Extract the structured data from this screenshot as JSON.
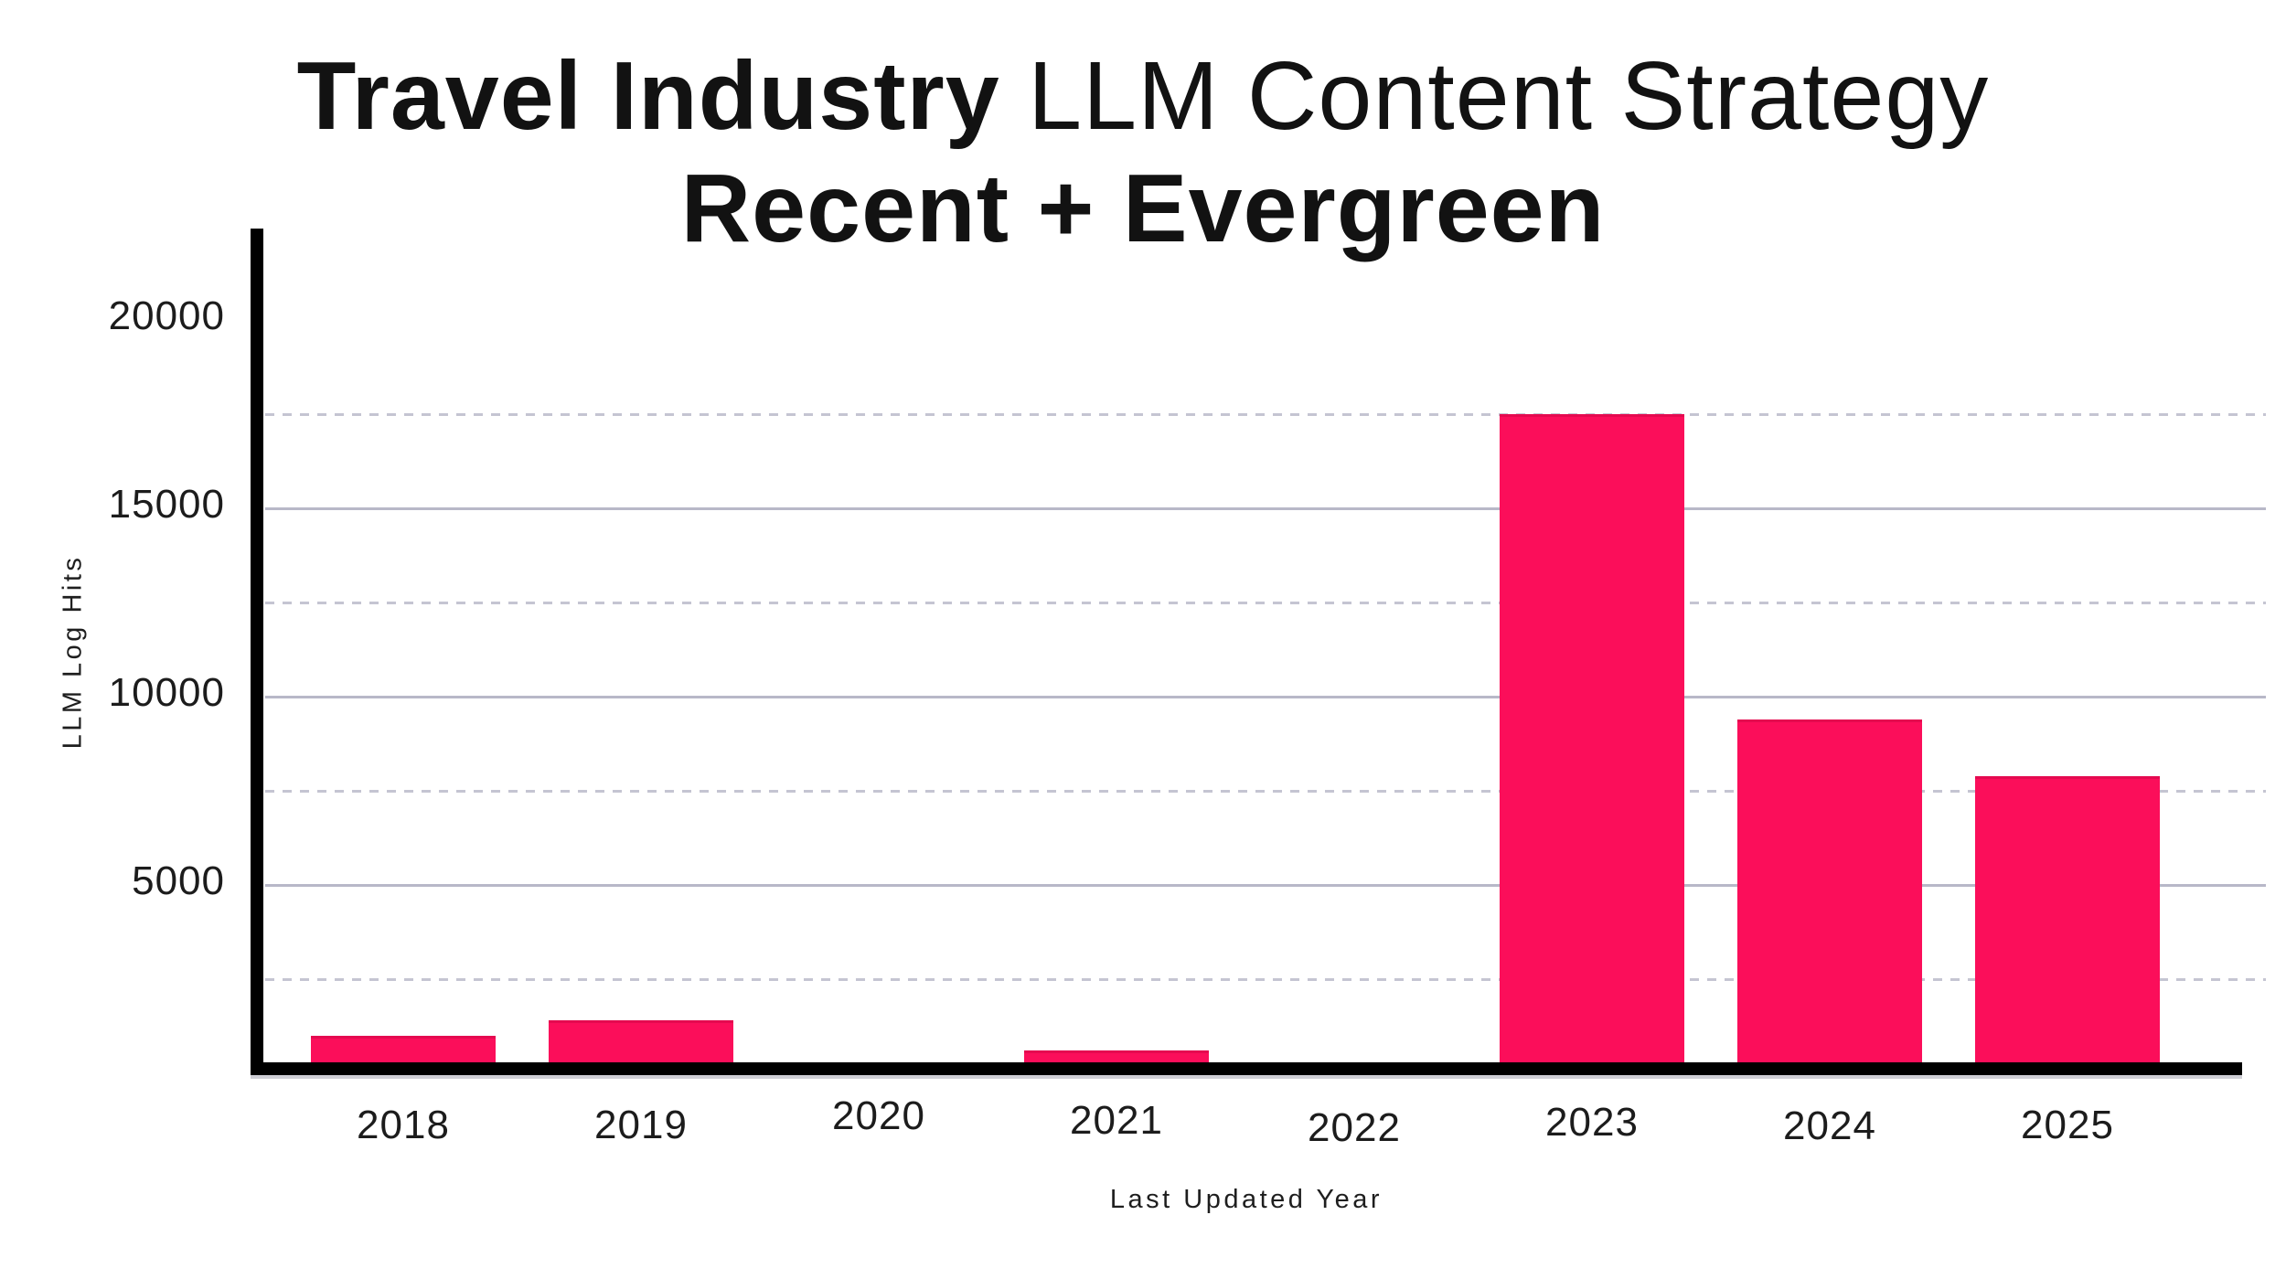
{
  "title": {
    "line1_emphasis": "Travel Industry",
    "line1_rest": " LLM Content Strategy",
    "line2": "Recent + Evergreen"
  },
  "chart_data": {
    "type": "bar",
    "title": "Travel Industry LLM Content Strategy — Recent + Evergreen",
    "categories": [
      "2018",
      "2019",
      "2020",
      "2021",
      "2022",
      "2023",
      "2024",
      "2025"
    ],
    "values": [
      1000,
      1400,
      0,
      600,
      0,
      17500,
      9400,
      7900
    ],
    "xlabel": "Last Updated Year",
    "ylabel": "LLM Log Hits",
    "ylim": [
      0,
      22000
    ],
    "yticks": [
      5000,
      10000,
      15000,
      20000
    ],
    "ytick_labels": [
      "5000",
      "10000",
      "15000",
      "20000"
    ],
    "minor_tick_step": 2500,
    "grid": "horizontal only: solid lines every 5000, dashed lines every 2500",
    "legend": "none",
    "bar_color": "#fb0e5a",
    "style": "hand-drawn xkcd-like, thick black axes, no bar labels"
  },
  "colors": {
    "background": "#ffffff",
    "bar": "#fb0e5a",
    "bar_top_edge": "#e50a50",
    "grid_major": "#b8b8c8",
    "grid_minor": "#c5c5d2",
    "axis": "#000000",
    "text": "#141414"
  }
}
